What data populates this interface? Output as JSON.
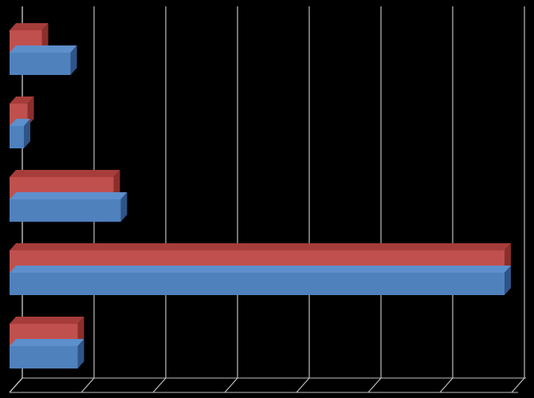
{
  "chart_data": {
    "type": "bar",
    "orientation": "horizontal",
    "style": "3d-clustered",
    "title": "",
    "xlabel": "",
    "ylabel": "",
    "categories": [
      "",
      "",
      "",
      "",
      ""
    ],
    "series": [
      {
        "values": [
          0.85,
          0.2,
          1.55,
          6.9,
          0.95
        ]
      },
      {
        "values": [
          0.45,
          0.25,
          1.45,
          6.9,
          0.95
        ]
      }
    ],
    "xlim": [
      0,
      7
    ],
    "gridlines": true,
    "legend": "none",
    "background": "#000000",
    "colors": {
      "series_blue_front": "#4f81bd",
      "series_blue_top": "#5d8fcc",
      "series_blue_side": "#2f5487",
      "series_red_front": "#c0504d",
      "series_red_top": "#a63d3a",
      "series_red_side": "#8c2f2c",
      "grid": "#bfbfbf"
    }
  }
}
